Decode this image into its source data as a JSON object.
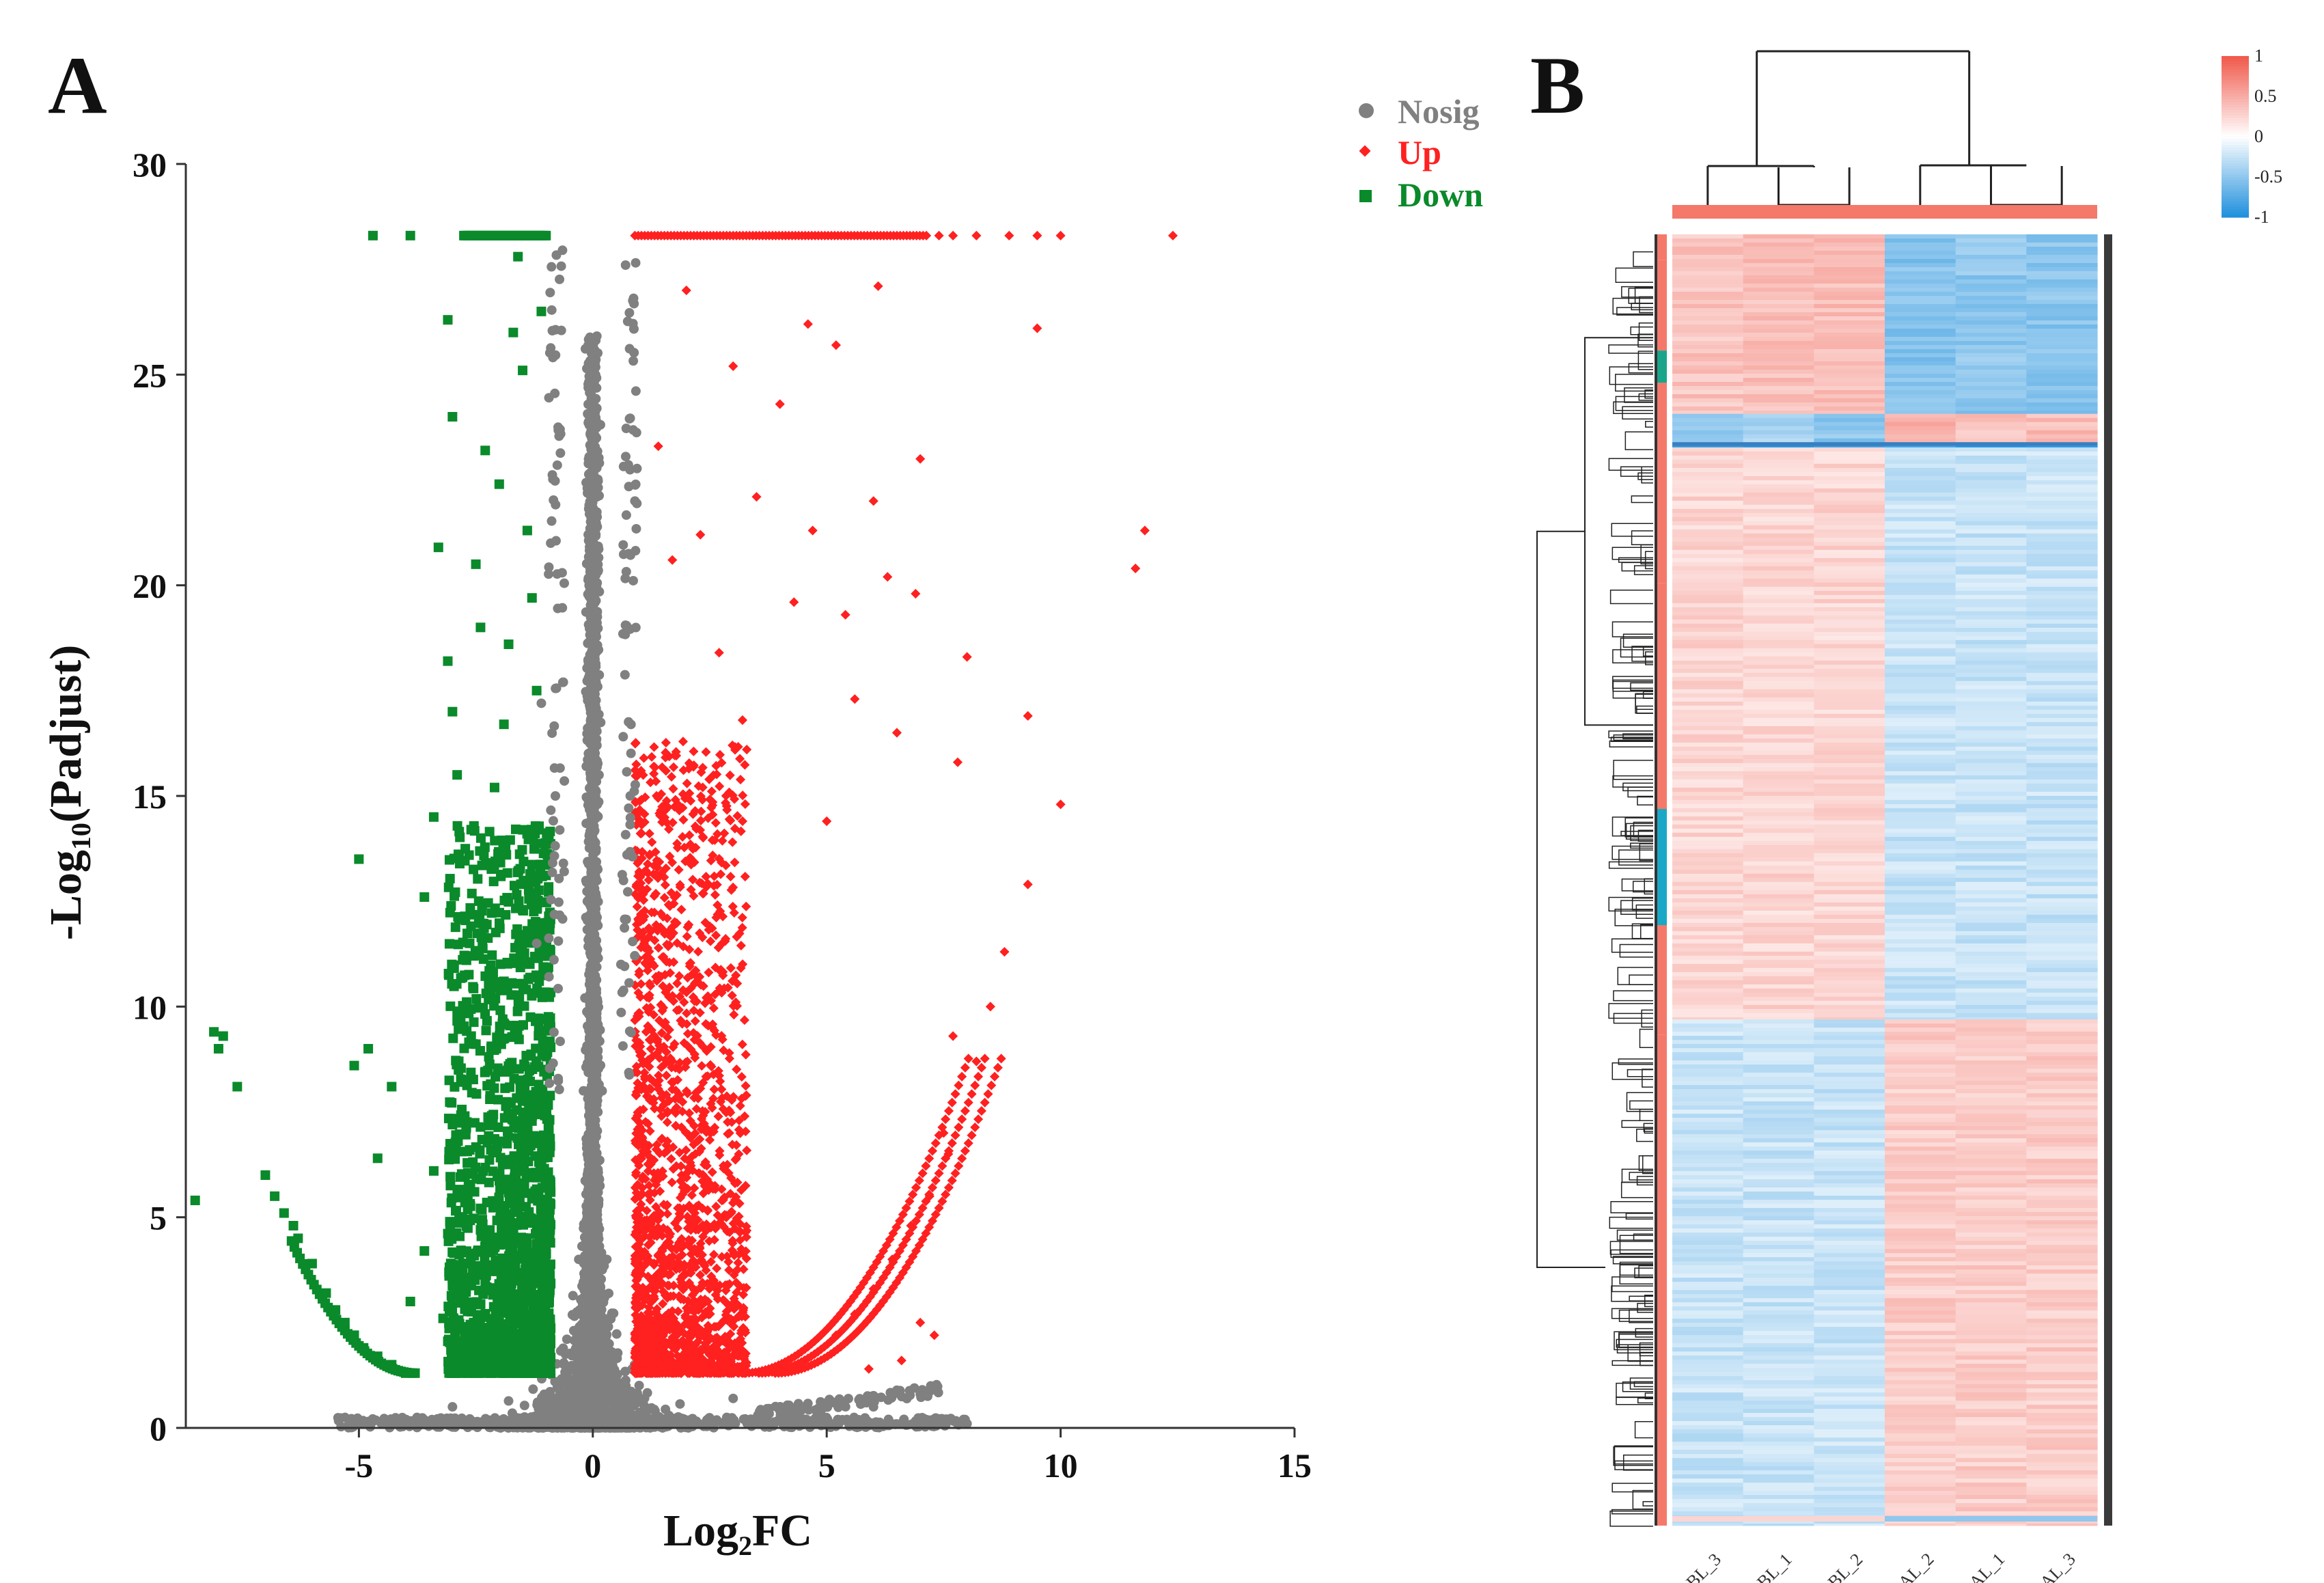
{
  "panels": {
    "a_label": "A",
    "b_label": "B"
  },
  "colors": {
    "nosig": "#808080",
    "up": "#ff2020",
    "down": "#0a8a2a",
    "heat_high": "#f0584a",
    "heat_mid": "#ffffff",
    "heat_low": "#1e8fdc",
    "col_annotation": "#f4796a",
    "row_annotation_dark": "#3a3a3a"
  },
  "chart_data": [
    {
      "type": "scatter",
      "name": "volcano",
      "xlabel_main": "Log",
      "xlabel_sub": "2",
      "xlabel_tail": "FC",
      "ylabel_main": "-Log",
      "ylabel_sub": "10",
      "ylabel_tail": "(Padjust)",
      "xlim": [
        -8.7,
        15
      ],
      "ylim": [
        0,
        30
      ],
      "xticks": [
        -5,
        0,
        5,
        10,
        15
      ],
      "xtick_labels": [
        "-5",
        "0",
        "5",
        "10",
        "15"
      ],
      "yticks": [
        0,
        5,
        10,
        15,
        20,
        25,
        30
      ],
      "ytick_labels": [
        "0",
        "5",
        "10",
        "15",
        "20",
        "25",
        "30"
      ],
      "cap_value": 28.3,
      "thresholds": {
        "log2fc": 1,
        "neg_log10_padj": 1.3
      },
      "legend": [
        {
          "key": "nosig",
          "label": "Nosig",
          "marker": "circle"
        },
        {
          "key": "up",
          "label": "Up",
          "marker": "diamond"
        },
        {
          "key": "down",
          "label": "Down",
          "marker": "square"
        }
      ],
      "series": [
        {
          "name": "Down",
          "points": [
            [
              -8.5,
              5.4
            ],
            [
              -8.1,
              9.4
            ],
            [
              -8.0,
              9.0
            ],
            [
              -7.9,
              9.3
            ],
            [
              -7.6,
              8.1
            ],
            [
              -7.0,
              6.0
            ],
            [
              -6.8,
              5.5
            ],
            [
              -6.6,
              5.1
            ],
            [
              -6.4,
              4.8
            ],
            [
              -6.3,
              4.5
            ],
            [
              -6.0,
              3.9
            ],
            [
              -5.7,
              3.2
            ],
            [
              -5.5,
              2.8
            ],
            [
              -5.3,
              2.5
            ],
            [
              -5.1,
              2.2
            ],
            [
              -4.9,
              1.9
            ],
            [
              -4.6,
              1.7
            ],
            [
              -4.3,
              1.5
            ],
            [
              -4.0,
              1.3
            ],
            [
              -5.1,
              8.6
            ],
            [
              -5.0,
              13.5
            ],
            [
              -4.8,
              9.0
            ],
            [
              -4.6,
              6.4
            ],
            [
              -4.3,
              8.1
            ],
            [
              -3.6,
              12.6
            ],
            [
              -3.4,
              14.5
            ],
            [
              -3.3,
              20.9
            ],
            [
              -3.1,
              18.2
            ],
            [
              -3.0,
              24.0
            ],
            [
              -3.0,
              17.0
            ],
            [
              -2.9,
              15.5
            ],
            [
              -2.7,
              11.1
            ],
            [
              -2.6,
              9.3
            ],
            [
              -2.6,
              14.2
            ],
            [
              -2.5,
              20.5
            ],
            [
              -2.4,
              19.0
            ],
            [
              -2.3,
              23.2
            ],
            [
              -2.0,
              22.4
            ],
            [
              -1.9,
              16.7
            ],
            [
              -1.7,
              26.0
            ],
            [
              -1.6,
              27.8
            ],
            [
              -1.5,
              25.1
            ],
            [
              -1.4,
              21.3
            ],
            [
              -1.3,
              19.7
            ],
            [
              -1.2,
              17.5
            ],
            [
              -1.1,
              26.5
            ],
            [
              -1.8,
              18.6
            ],
            [
              -2.1,
              15.2
            ],
            [
              -1.5,
              12.3
            ],
            [
              -3.1,
              26.3
            ],
            [
              -3.0,
              7.2
            ],
            [
              -3.4,
              6.1
            ],
            [
              -2.8,
              5.0
            ],
            [
              -3.6,
              4.2
            ],
            [
              -3.9,
              3.0
            ],
            [
              -2.2,
              7.8
            ],
            [
              -1.9,
              10.6
            ],
            [
              -1.4,
              11.8
            ],
            [
              -2.4,
              4.7
            ],
            [
              -3.2,
              2.6
            ]
          ],
          "count_note": "dense band from Log2FC -3.0 to -0.9 above threshold"
        },
        {
          "name": "Up",
          "points": [
            [
              12.4,
              28.3
            ],
            [
              10.0,
              28.3
            ],
            [
              9.5,
              28.3
            ],
            [
              8.9,
              28.3
            ],
            [
              8.2,
              28.3
            ],
            [
              7.7,
              28.3
            ],
            [
              7.4,
              28.3
            ],
            [
              11.8,
              21.3
            ],
            [
              11.6,
              20.4
            ],
            [
              10.0,
              14.8
            ],
            [
              9.5,
              26.1
            ],
            [
              9.3,
              16.9
            ],
            [
              9.3,
              12.9
            ],
            [
              8.8,
              11.3
            ],
            [
              8.0,
              18.3
            ],
            [
              7.8,
              15.8
            ],
            [
              7.7,
              9.3
            ],
            [
              7.5,
              7.0
            ],
            [
              7.0,
              23.0
            ],
            [
              6.9,
              19.8
            ],
            [
              6.5,
              16.5
            ],
            [
              6.3,
              20.2
            ],
            [
              6.1,
              27.1
            ],
            [
              6.0,
              22.0
            ],
            [
              5.6,
              17.3
            ],
            [
              5.4,
              19.3
            ],
            [
              5.2,
              25.7
            ],
            [
              5.0,
              14.4
            ],
            [
              4.7,
              21.3
            ],
            [
              4.6,
              26.2
            ],
            [
              4.3,
              19.6
            ],
            [
              4.0,
              24.3
            ],
            [
              3.5,
              22.1
            ],
            [
              3.2,
              16.8
            ],
            [
              3.0,
              25.2
            ],
            [
              2.7,
              18.4
            ],
            [
              2.3,
              21.2
            ],
            [
              2.0,
              27.0
            ],
            [
              1.7,
              20.6
            ],
            [
              1.4,
              23.3
            ],
            [
              8.5,
              10.0
            ],
            [
              8.2,
              8.7
            ],
            [
              7.6,
              6.5
            ],
            [
              7.2,
              5.5
            ],
            [
              6.8,
              4.8
            ],
            [
              6.4,
              4.0
            ],
            [
              6.0,
              3.3
            ],
            [
              5.6,
              2.7
            ],
            [
              5.2,
              2.2
            ],
            [
              7.3,
              2.2
            ],
            [
              7.0,
              2.5
            ],
            [
              6.6,
              1.6
            ],
            [
              5.9,
              1.4
            ]
          ],
          "count_note": "dense band from Log2FC 0.9 to 3.2 above threshold"
        },
        {
          "name": "Nosig",
          "points": [
            [
              0.0,
              0.2
            ],
            [
              -0.5,
              1.0
            ],
            [
              0.5,
              1.0
            ],
            [
              -0.3,
              4.0
            ],
            [
              0.3,
              4.0
            ],
            [
              -0.2,
              8.0
            ],
            [
              0.2,
              8.0
            ],
            [
              -0.8,
              15.0
            ],
            [
              0.8,
              15.0
            ],
            [
              -0.9,
              21.0
            ],
            [
              0.9,
              22.0
            ],
            [
              -0.7,
              23.7
            ],
            [
              0.7,
              27.6
            ],
            [
              -1.1,
              17.2
            ],
            [
              -1.2,
              11.5
            ],
            [
              5.0,
              0.6
            ],
            [
              6.0,
              0.5
            ],
            [
              7.0,
              0.8
            ],
            [
              8.0,
              0.1
            ],
            [
              -5.0,
              0.1
            ],
            [
              -3.0,
              0.5
            ],
            [
              3.0,
              0.7
            ]
          ],
          "count_note": "dense funnel around Log2FC 0 plus baseline strip"
        }
      ]
    },
    {
      "type": "heatmap",
      "name": "clustered heatmap",
      "columns": [
        "BL_3",
        "BL_1",
        "BL_2",
        "AL_2",
        "AL_1",
        "AL_3"
      ],
      "colorbar": {
        "ticks": [
          1,
          0.5,
          0,
          -0.5,
          -1
        ],
        "tick_labels": [
          "1",
          "0.5",
          "0",
          "-0.5",
          "-1"
        ]
      },
      "row_clusters": [
        {
          "name": "cluster1",
          "fraction": 0.139,
          "values": [
            0.35,
            0.38,
            0.4,
            -0.55,
            -0.5,
            -0.52
          ]
        },
        {
          "name": "cluster2",
          "fraction": 0.022,
          "values": [
            -0.45,
            -0.4,
            -0.5,
            0.45,
            0.35,
            0.4
          ]
        },
        {
          "name": "cluster3",
          "fraction": 0.004,
          "values": [
            -0.9,
            -0.9,
            -0.9,
            -0.9,
            -0.9,
            -0.9
          ]
        },
        {
          "name": "cluster4",
          "fraction": 0.443,
          "values": [
            0.25,
            0.25,
            0.25,
            -0.25,
            -0.25,
            -0.25
          ]
        },
        {
          "name": "cluster5",
          "fraction": 0.392,
          "values": [
            -0.25,
            -0.25,
            -0.25,
            0.3,
            0.3,
            0.3
          ]
        }
      ]
    }
  ]
}
